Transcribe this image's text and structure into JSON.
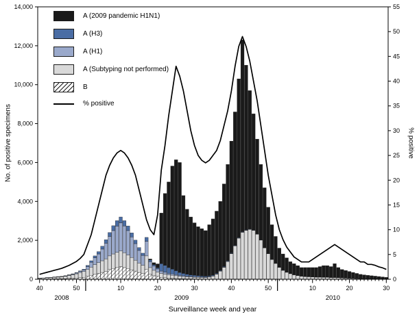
{
  "chart_data": {
    "type": "bar",
    "stacked": true,
    "title": "",
    "x_label": "Surveillance week and year",
    "y_left_label": "No. of positive specimens",
    "y_right_label": "% positive",
    "ylim_left": [
      0,
      14000
    ],
    "ylim_right": [
      0,
      55
    ],
    "y_left_ticks": [
      "0",
      "2,000",
      "4,000",
      "6,000",
      "8,000",
      "10,000",
      "12,000",
      "14,000"
    ],
    "y_right_ticks": [
      "0",
      "5",
      "10",
      "15",
      "20",
      "25",
      "30",
      "35",
      "40",
      "45",
      "50",
      "55"
    ],
    "x_ranges": [
      {
        "year": "2008",
        "from": 40,
        "to": 52
      },
      {
        "year": "2009",
        "from": 1,
        "to": 52
      },
      {
        "year": "2010",
        "from": 1,
        "to": 30
      }
    ],
    "series": [
      {
        "name": "B",
        "color": "hatch",
        "values": [
          10,
          10,
          15,
          15,
          20,
          20,
          25,
          30,
          40,
          50,
          60,
          80,
          100,
          150,
          200,
          250,
          300,
          350,
          400,
          500,
          550,
          600,
          650,
          600,
          550,
          480,
          420,
          350,
          300,
          500,
          250,
          180,
          150,
          100,
          80,
          60,
          50,
          40,
          30,
          25,
          20,
          20,
          15,
          15,
          10,
          10,
          10,
          10,
          10,
          10,
          10,
          10,
          10,
          10,
          10,
          10,
          10,
          10,
          10,
          10,
          10,
          10,
          10,
          10,
          10,
          5,
          5,
          5,
          5,
          5,
          5,
          5,
          5,
          5,
          5,
          5,
          5,
          5,
          5,
          5,
          5,
          5,
          5,
          5,
          5,
          5,
          5,
          5,
          5,
          5,
          5,
          5,
          5,
          5,
          5
        ]
      },
      {
        "name": "A (Subtyping not performed)",
        "color": "#d9d9d9",
        "values": [
          40,
          50,
          60,
          70,
          80,
          90,
          100,
          120,
          150,
          180,
          220,
          260,
          300,
          350,
          420,
          500,
          550,
          600,
          650,
          700,
          750,
          780,
          800,
          760,
          700,
          640,
          560,
          480,
          420,
          700,
          350,
          280,
          220,
          200,
          180,
          160,
          150,
          140,
          120,
          110,
          100,
          90,
          85,
          80,
          80,
          75,
          100,
          150,
          250,
          400,
          600,
          900,
          1300,
          1700,
          2100,
          2400,
          2500,
          2550,
          2500,
          2300,
          2000,
          1600,
          1300,
          1000,
          800,
          600,
          450,
          350,
          280,
          220,
          180,
          150,
          130,
          120,
          110,
          100,
          100,
          90,
          90,
          80,
          80,
          70,
          60,
          50,
          40,
          35,
          30,
          25,
          25,
          20,
          20,
          15,
          15,
          10,
          10
        ]
      },
      {
        "name": "A (H1)",
        "color": "#9aa9cb",
        "values": [
          5,
          5,
          10,
          10,
          10,
          15,
          15,
          20,
          25,
          30,
          40,
          60,
          80,
          150,
          250,
          350,
          450,
          600,
          800,
          1000,
          1200,
          1350,
          1450,
          1380,
          1250,
          1050,
          850,
          650,
          500,
          750,
          300,
          220,
          160,
          120,
          100,
          80,
          70,
          60,
          50,
          45,
          40,
          35,
          30,
          30,
          25,
          25,
          20,
          20,
          20,
          20,
          20,
          20,
          20,
          20,
          20,
          20,
          20,
          15,
          15,
          15,
          15,
          10,
          10,
          10,
          10,
          10,
          10,
          10,
          5,
          5,
          5,
          5,
          5,
          5,
          5,
          5,
          5,
          5,
          5,
          5,
          5,
          5,
          5,
          5,
          5,
          5,
          5,
          5,
          5,
          5,
          5,
          5,
          5,
          5,
          5
        ]
      },
      {
        "name": "A (H3)",
        "color": "#4a6da4",
        "values": [
          5,
          5,
          5,
          5,
          10,
          10,
          10,
          15,
          15,
          20,
          25,
          30,
          40,
          60,
          80,
          100,
          120,
          150,
          180,
          200,
          250,
          280,
          300,
          270,
          240,
          210,
          180,
          150,
          120,
          200,
          90,
          70,
          60,
          380,
          350,
          300,
          250,
          200,
          150,
          120,
          100,
          80,
          70,
          60,
          55,
          50,
          45,
          40,
          35,
          30,
          30,
          25,
          25,
          20,
          20,
          20,
          20,
          15,
          15,
          15,
          10,
          10,
          10,
          10,
          10,
          10,
          10,
          5,
          5,
          5,
          5,
          5,
          5,
          5,
          5,
          5,
          5,
          5,
          5,
          5,
          5,
          5,
          5,
          5,
          5,
          5,
          5,
          5,
          5,
          5,
          5,
          5,
          5,
          5,
          5
        ]
      },
      {
        "name": "A (2009 pandemic H1N1)",
        "color": "#1a1a1a",
        "values": [
          0,
          0,
          0,
          0,
          0,
          0,
          0,
          0,
          0,
          0,
          0,
          0,
          0,
          0,
          0,
          0,
          0,
          0,
          0,
          0,
          0,
          0,
          0,
          0,
          0,
          0,
          0,
          0,
          0,
          0,
          50,
          100,
          200,
          2600,
          3700,
          4400,
          5300,
          5700,
          5650,
          4000,
          3340,
          2975,
          2700,
          2515,
          2430,
          2340,
          2625,
          2880,
          3185,
          3540,
          4240,
          4945,
          5745,
          6850,
          8150,
          9850,
          8450,
          7105,
          5960,
          4860,
          3865,
          3070,
          2370,
          1770,
          1370,
          975,
          825,
          730,
          605,
          565,
          505,
          435,
          455,
          465,
          475,
          485,
          535,
          595,
          595,
          555,
          705,
          515,
          425,
          385,
          345,
          300,
          255,
          210,
          185,
          165,
          145,
          130,
          110,
          95,
          75
        ]
      }
    ],
    "line": {
      "name": "% positive",
      "color": "#000000",
      "axis": "right",
      "values": [
        1,
        1.2,
        1.4,
        1.6,
        1.8,
        2,
        2.2,
        2.5,
        2.8,
        3.2,
        3.6,
        4.2,
        5,
        7,
        9,
        12,
        15,
        18,
        21,
        23,
        24.5,
        25.5,
        26,
        25.5,
        24.5,
        23,
        21,
        18,
        15,
        12,
        10,
        9,
        13,
        22,
        27,
        33,
        38,
        43,
        41,
        38,
        34,
        30,
        27,
        25,
        24,
        23.5,
        24,
        25,
        26,
        28,
        31,
        34,
        38,
        43,
        47,
        49,
        47,
        44,
        40,
        36,
        31,
        26,
        21,
        17,
        13,
        10,
        8,
        6.5,
        5.5,
        4.5,
        4,
        3.5,
        3.5,
        3.5,
        4,
        4.5,
        5,
        5.5,
        6,
        6.5,
        7,
        6.5,
        6,
        5.5,
        5,
        4.5,
        4,
        3.5,
        3.5,
        3,
        3,
        2.8,
        2.5,
        2.3,
        2
      ]
    },
    "legend": [
      {
        "label": "A (2009 pandemic H1N1)",
        "swatch": "#1a1a1a"
      },
      {
        "label": "A (H3)",
        "swatch": "#4a6da4"
      },
      {
        "label": "A (H1)",
        "swatch": "#9aa9cb"
      },
      {
        "label": "A (Subtyping not performed)",
        "swatch": "#d9d9d9"
      },
      {
        "label": "B",
        "swatch": "hatch"
      },
      {
        "label": "% positive",
        "swatch": "line"
      }
    ]
  }
}
